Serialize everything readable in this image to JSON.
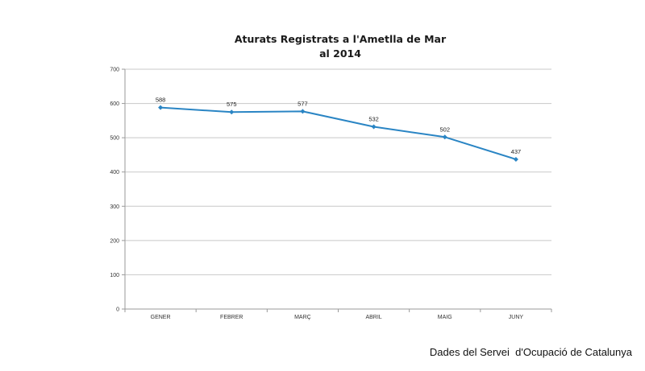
{
  "chart_data": {
    "type": "line",
    "title_line1": "Aturats Registrats a l'Ametlla de Mar",
    "title_line2": "al 2014",
    "categories": [
      "GENER",
      "FEBRER",
      "MARÇ",
      "ABRIL",
      "MAIG",
      "JUNY"
    ],
    "series": [
      {
        "values": [
          588,
          575,
          577,
          532,
          502,
          437
        ]
      }
    ],
    "yticks": [
      0,
      100,
      200,
      300,
      400,
      500,
      600,
      700
    ],
    "ylim": [
      0,
      700
    ],
    "grid": true,
    "legend": false,
    "line_color": "#2a85c4",
    "grid_color": "#c8c8c8",
    "axis_color": "#9a9a9a"
  },
  "source_note": "Dades del Servei  d'Ocupació de Catalunya"
}
